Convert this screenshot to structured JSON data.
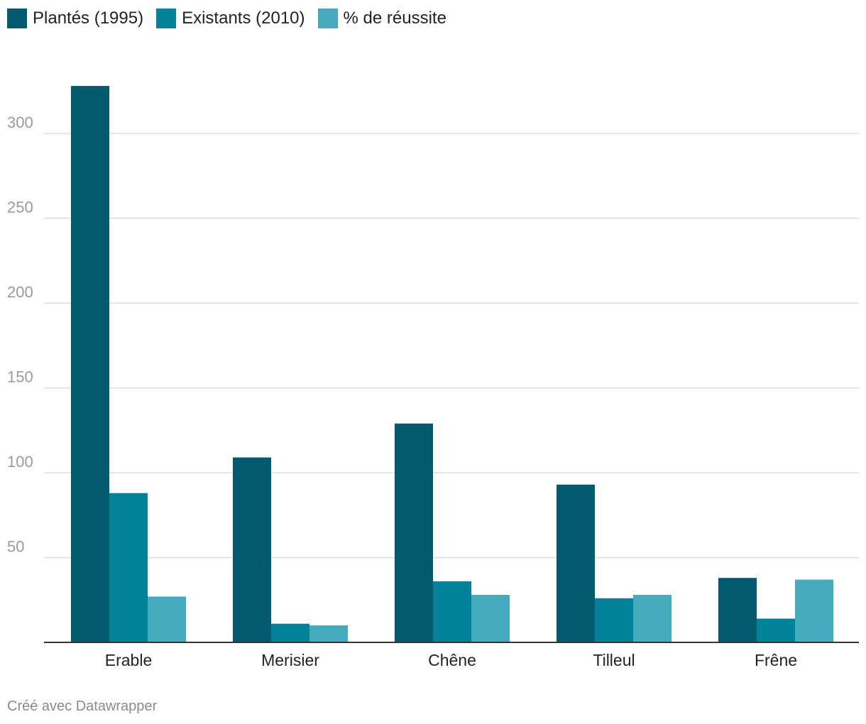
{
  "chart_data": {
    "type": "bar",
    "title": "",
    "xlabel": "",
    "ylabel": "",
    "ylim": [
      0,
      330
    ],
    "yticks": [
      50,
      100,
      150,
      200,
      250,
      300
    ],
    "grid": true,
    "legend_position": "top-left",
    "categories": [
      "Erable",
      "Merisier",
      "Chêne",
      "Tilleul",
      "Frêne"
    ],
    "series": [
      {
        "name": "Plantés (1995)",
        "color": "#015a6d",
        "values": [
          328,
          109,
          129,
          93,
          38
        ]
      },
      {
        "name": "Existants (2010)",
        "color": "#01819a",
        "values": [
          88,
          11,
          36,
          26,
          14
        ]
      },
      {
        "name": "% de réussite",
        "color": "#46aabf",
        "values": [
          27,
          10,
          28,
          28,
          37
        ]
      }
    ]
  },
  "footer": {
    "credit": "Créé avec Datawrapper"
  }
}
